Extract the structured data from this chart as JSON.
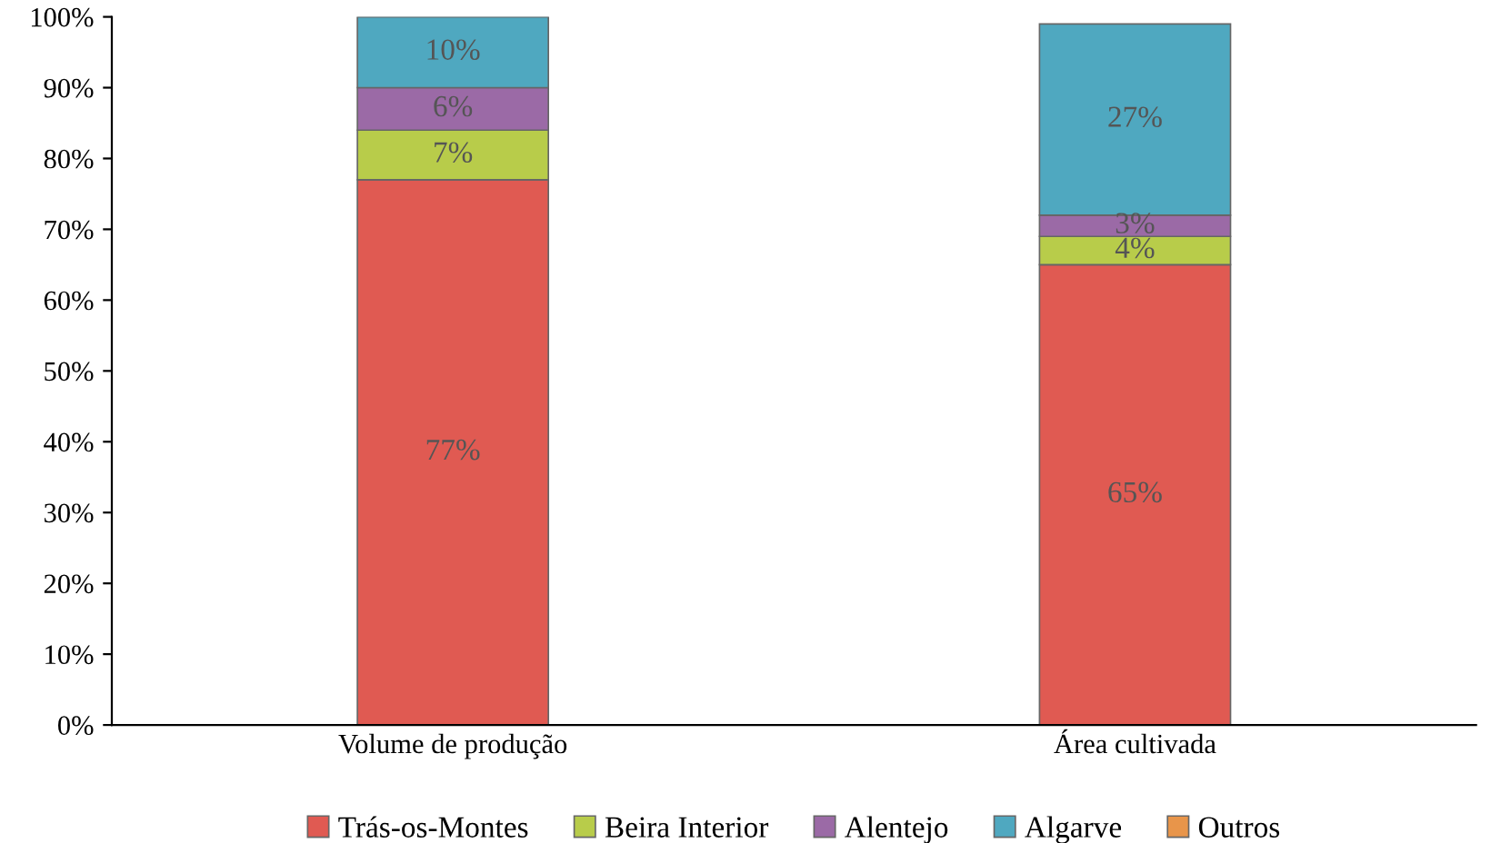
{
  "chart_data": {
    "type": "bar",
    "stacked": true,
    "categories": [
      "Volume de produção",
      "Área cultivada"
    ],
    "series": [
      {
        "name": "Trás-os-Montes",
        "color": "#e05a52",
        "values": [
          77,
          65
        ],
        "value_labels": [
          "77%",
          "65%"
        ]
      },
      {
        "name": "Beira Interior",
        "color": "#b8cc4a",
        "values": [
          7,
          4
        ],
        "value_labels": [
          "7%",
          "4%"
        ]
      },
      {
        "name": "Alentejo",
        "color": "#9b6aa6",
        "values": [
          6,
          3
        ],
        "value_labels": [
          "6%",
          "3%"
        ]
      },
      {
        "name": "Algarve",
        "color": "#4fa8c0",
        "values": [
          10,
          27
        ],
        "value_labels": [
          "10%",
          "27%"
        ]
      },
      {
        "name": "Outros",
        "color": "#e8954a",
        "values": [
          null,
          null
        ],
        "value_labels": [
          null,
          null
        ]
      }
    ],
    "ylim": [
      0,
      100
    ],
    "yticks": [
      {
        "value": 0,
        "label": "0%"
      },
      {
        "value": 10,
        "label": "10%"
      },
      {
        "value": 20,
        "label": "20%"
      },
      {
        "value": 30,
        "label": "30%"
      },
      {
        "value": 40,
        "label": "40%"
      },
      {
        "value": 50,
        "label": "50%"
      },
      {
        "value": 60,
        "label": "60%"
      },
      {
        "value": 70,
        "label": "70%"
      },
      {
        "value": 80,
        "label": "80%"
      },
      {
        "value": 90,
        "label": "90%"
      },
      {
        "value": 100,
        "label": "100%"
      }
    ],
    "grid": false,
    "legend": "bottom"
  }
}
